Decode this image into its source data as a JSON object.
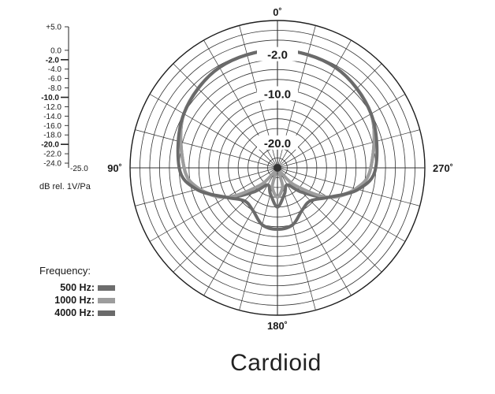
{
  "chart_data": {
    "type": "polar",
    "title": "Cardioid",
    "radial_axis": {
      "unit_label": "dB rel. 1V/Pa",
      "ticks": [
        "+5.0",
        "0.0",
        "-2.0",
        "-4.0",
        "-6.0",
        "-8.0",
        "-10.0",
        "-12.0",
        "-14.0",
        "-16.0",
        "-18.0",
        "-20.0",
        "-22.0",
        "-24.0"
      ],
      "bold_ticks": [
        "-2.0",
        "-10.0",
        "-20.0"
      ],
      "end_label": "-25.0",
      "range": [
        -25,
        5
      ],
      "ring_labels": [
        "-2.0",
        "-10.0",
        "-20.0"
      ]
    },
    "angle_labels": [
      "0˚",
      "90˚",
      "180˚",
      "270˚"
    ],
    "angular_grid_step_deg": 15,
    "legend": {
      "title": "Frequency:",
      "placement": "bottom-left"
    },
    "series": [
      {
        "name": "500 Hz:",
        "color": "#6d6d6d",
        "points": [
          [
            0,
            -1.0
          ],
          [
            30,
            -1.4
          ],
          [
            60,
            -3.0
          ],
          [
            90,
            -6.0
          ],
          [
            105,
            -8.5
          ],
          [
            120,
            -13.0
          ],
          [
            135,
            -18.0
          ],
          [
            150,
            -21.0
          ],
          [
            165,
            -19.5
          ],
          [
            180,
            -17.0
          ]
        ]
      },
      {
        "name": "1000 Hz:",
        "color": "#9d9d9d",
        "points": [
          [
            0,
            -1.0
          ],
          [
            30,
            -1.4
          ],
          [
            60,
            -3.0
          ],
          [
            90,
            -6.0
          ],
          [
            105,
            -8.5
          ],
          [
            120,
            -13.0
          ],
          [
            135,
            -20.0
          ],
          [
            150,
            -24.0
          ],
          [
            165,
            -21.0
          ],
          [
            180,
            -19.0
          ]
        ]
      },
      {
        "name": "4000 Hz:",
        "color": "#6a6a6a",
        "points": [
          [
            0,
            -1.0
          ],
          [
            30,
            -1.4
          ],
          [
            60,
            -3.0
          ],
          [
            90,
            -5.0
          ],
          [
            105,
            -8.0
          ],
          [
            120,
            -13.0
          ],
          [
            135,
            -15.5
          ],
          [
            150,
            -15.0
          ],
          [
            165,
            -13.0
          ],
          [
            180,
            -12.5
          ]
        ]
      }
    ]
  }
}
